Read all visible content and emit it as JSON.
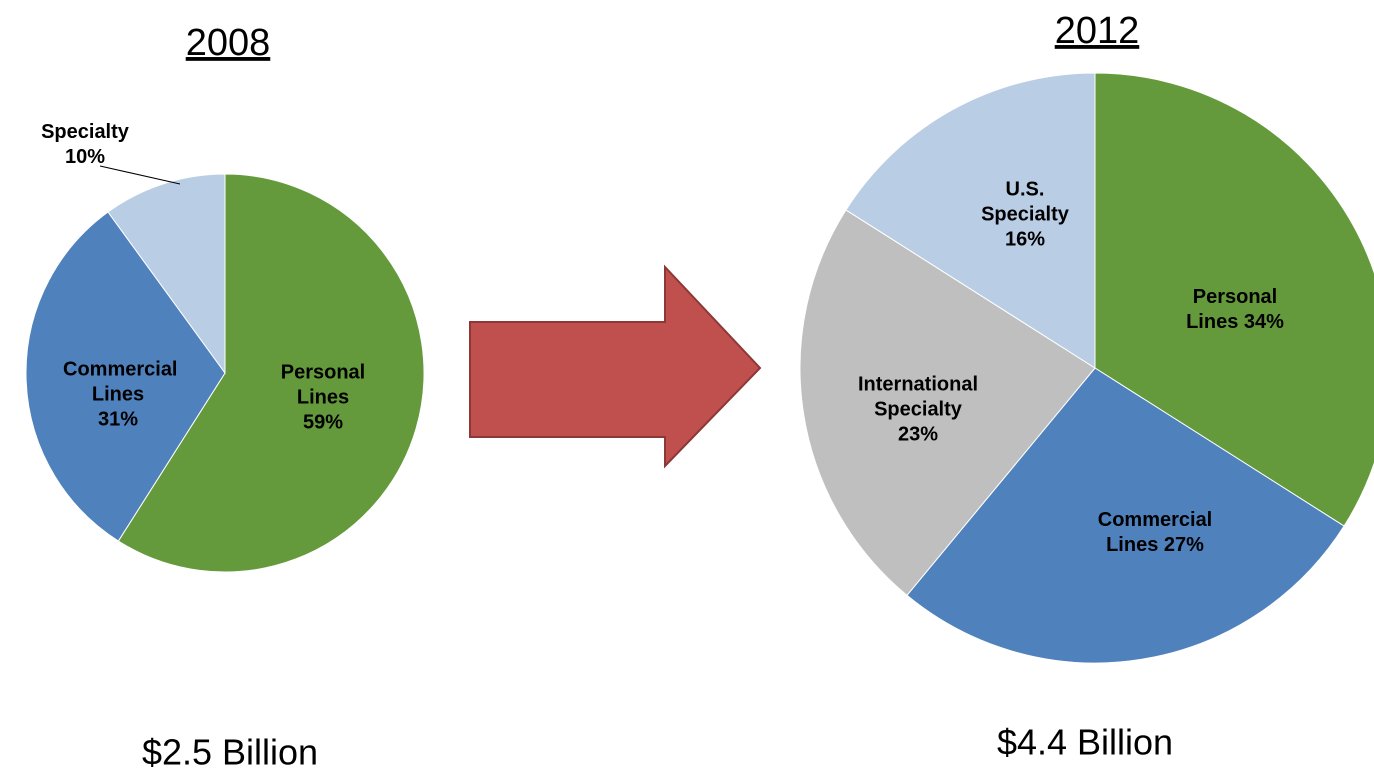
{
  "chart_data": [
    {
      "type": "pie",
      "title": "2008",
      "subtitle": "$2.5 Billion",
      "categories": [
        "Personal Lines",
        "Commercial Lines",
        "Specialty"
      ],
      "values": [
        59,
        31,
        10
      ],
      "value_labels": [
        "59%",
        "31%",
        "10%"
      ],
      "colors": [
        "#649a3b",
        "#4f81bd",
        "#b9cde5"
      ]
    },
    {
      "type": "pie",
      "title": "2012",
      "subtitle": "$4.4 Billion",
      "categories": [
        "Personal Lines",
        "Commercial Lines",
        "International Specialty",
        "U.S. Specialty"
      ],
      "values": [
        34,
        27,
        23,
        16
      ],
      "value_labels": [
        "34%",
        "27%",
        "23%",
        "16%"
      ],
      "colors": [
        "#649a3b",
        "#4f81bd",
        "#bfbfbf",
        "#b9cde5"
      ]
    }
  ]
}
